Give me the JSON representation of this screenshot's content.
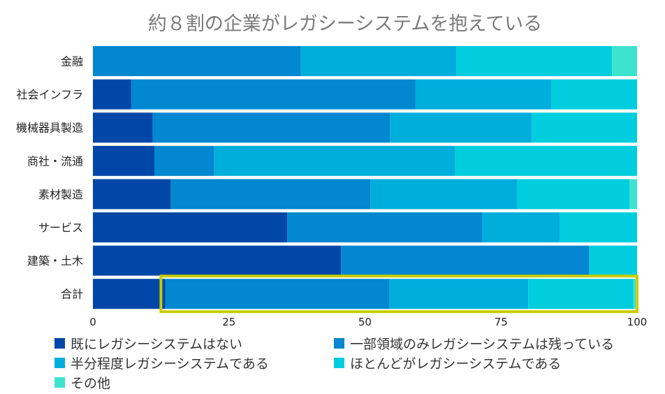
{
  "chart_data": {
    "type": "bar",
    "orientation": "horizontal",
    "stacked": true,
    "title": "約８割の企業がレガシーシステムを抱えている",
    "categories": [
      "金融",
      "社会インフラ",
      "機械器具製造",
      "商社・流通",
      "素材製造",
      "サービス",
      "建築・土木",
      "合計"
    ],
    "series": [
      {
        "name": "既にレガシーシステムはない",
        "color": "#0047A8",
        "values": [
          0,
          7,
          11,
          11.3,
          14.3,
          35.7,
          45.6,
          13.3
        ]
      },
      {
        "name": "一部領域のみレガシーシステムは残っている",
        "color": "#0287D0",
        "values": [
          38.2,
          52.3,
          43.6,
          11,
          36.7,
          35.8,
          45.6,
          41.2
        ]
      },
      {
        "name": "半分程度レガシーシステムである",
        "color": "#00AEDC",
        "values": [
          28.6,
          25,
          26.1,
          44.3,
          27,
          14.3,
          0,
          25.5
        ]
      },
      {
        "name": "ほとんどがレガシーシステムである",
        "color": "#00CDDD",
        "values": [
          28.6,
          15.7,
          19.3,
          33.4,
          20.6,
          14.2,
          8.8,
          19.3
        ]
      },
      {
        "name": "その他",
        "color": "#3EE3CF",
        "values": [
          4.6,
          0,
          0,
          0,
          1.4,
          0,
          0,
          0.7
        ]
      }
    ],
    "xlim": [
      0,
      100
    ],
    "xticks": [
      0,
      25,
      50,
      75,
      100
    ],
    "grid": false,
    "legend_position": "bottom",
    "highlight": {
      "category": "合計",
      "from_value": 12.5,
      "to_value": 100,
      "color": "#C9CC00"
    }
  }
}
